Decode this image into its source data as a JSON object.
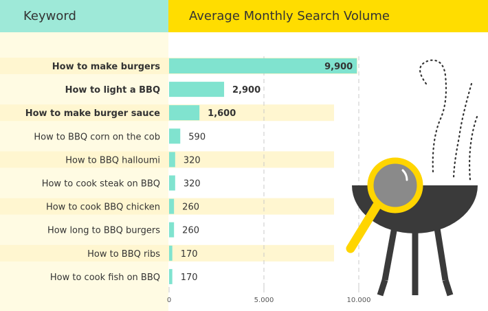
{
  "chart_data": {
    "type": "bar",
    "orientation": "horizontal",
    "headers": {
      "keyword": "Keyword",
      "volume": "Average Monthly Search Volume"
    },
    "categories": [
      "How to make burgers",
      "How to light a BBQ",
      "How to make burger sauce",
      "How to BBQ corn on the cob",
      "How to BBQ halloumi",
      "How to cook steak on BBQ",
      "How to cook BBQ chicken",
      "How long to BBQ burgers",
      "How to BBQ ribs",
      "How to cook fish on BBQ"
    ],
    "values": [
      9900,
      2900,
      1600,
      590,
      320,
      320,
      260,
      260,
      170,
      170
    ],
    "value_labels": [
      "9,900",
      "2,900",
      "1,600",
      "590",
      "320",
      "320",
      "260",
      "260",
      "170",
      "170"
    ],
    "bold_rows": [
      0,
      1,
      2
    ],
    "xlim": [
      0,
      10000
    ],
    "xticks": [
      0,
      5000,
      10000
    ],
    "xtick_labels": [
      "0",
      "5.000",
      "10.000"
    ],
    "grid": "vertical dashed",
    "colors": {
      "bar": "#80e3cf",
      "header_keyword": "#9ee9d8",
      "header_volume": "#ffdd00",
      "row_highlight": "#fff6d0",
      "grill": "#3a3a3a",
      "magnifier": "#ffd500"
    }
  }
}
